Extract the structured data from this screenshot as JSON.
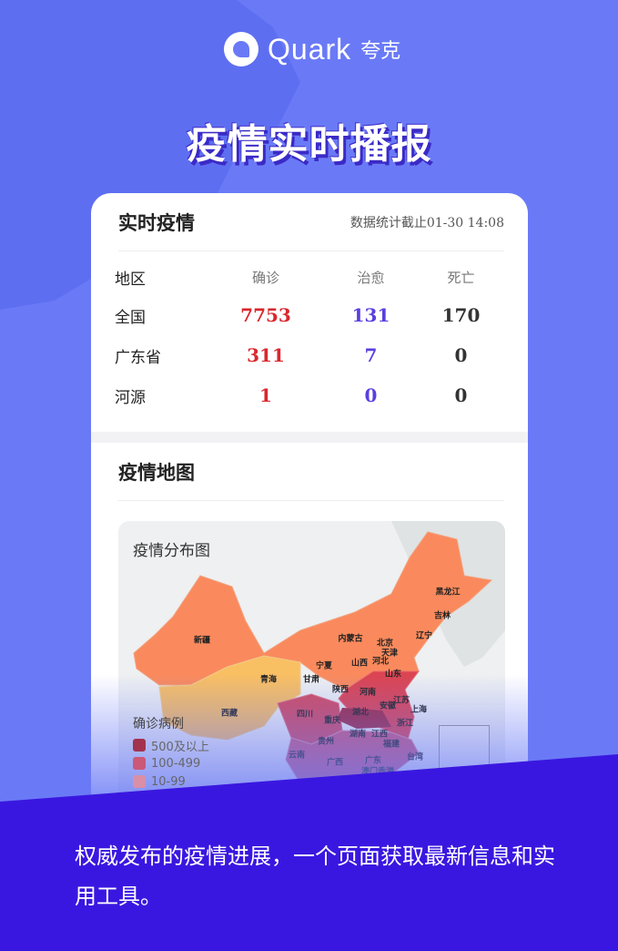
{
  "brand": {
    "name": "Quark",
    "name_cn": "夸克"
  },
  "headline": "疫情实时播报",
  "realtime": {
    "title": "实时疫情",
    "updated": "数据统计截止01-30 14:08",
    "columns": [
      "地区",
      "确诊",
      "治愈",
      "死亡"
    ],
    "rows": [
      {
        "region": "全国",
        "confirmed": "7753",
        "cured": "131",
        "deaths": "170"
      },
      {
        "region": "广东省",
        "confirmed": "311",
        "cured": "7",
        "deaths": "0"
      },
      {
        "region": "河源",
        "confirmed": "1",
        "cured": "0",
        "deaths": "0"
      }
    ]
  },
  "map_section": {
    "title": "疫情地图",
    "map_title": "疫情分布图",
    "legend_title": "确诊病例",
    "legend": [
      {
        "label": "500及以上",
        "color": "#a3324f"
      },
      {
        "label": "100-499",
        "color": "#cc5878"
      },
      {
        "label": "10-99",
        "color": "#d98fa8"
      }
    ],
    "provinces": [
      "新疆",
      "青海",
      "西藏",
      "内蒙古",
      "北京",
      "天津",
      "辽宁",
      "吉林",
      "黑龙江",
      "宁夏",
      "山西",
      "河北",
      "甘肃",
      "山东",
      "陕西",
      "河南",
      "江苏",
      "安徽",
      "上海",
      "四川",
      "湖北",
      "重庆",
      "浙江",
      "湖南",
      "江西",
      "贵州",
      "福建",
      "云南",
      "广西",
      "广东",
      "台湾",
      "澳门香港"
    ]
  },
  "slogan": "权威发布的疫情进展，一个页面获取最新信息和实用工具。",
  "colors": {
    "background": "#6a7af6",
    "band": "#3a17e0",
    "confirmed": "#d9272e",
    "cured": "#5a3fe0"
  }
}
